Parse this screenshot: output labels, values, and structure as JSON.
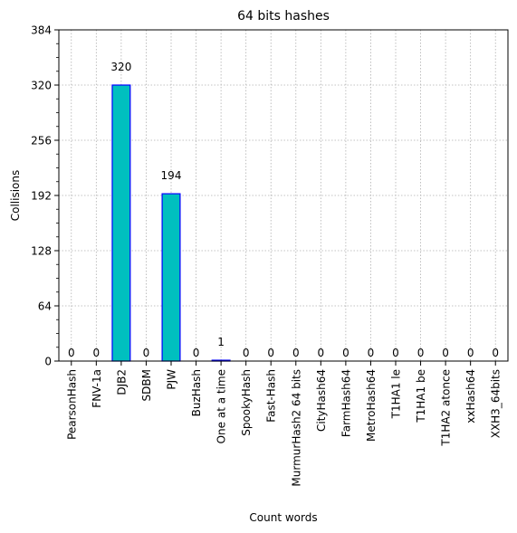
{
  "chart_data": {
    "type": "bar",
    "title": "64 bits hashes",
    "xlabel": "Count words",
    "ylabel": "Collisions",
    "ylim": [
      0,
      384
    ],
    "yticks": [
      0,
      64,
      128,
      192,
      256,
      320,
      384
    ],
    "categories": [
      "PearsonHash",
      "FNV-1a",
      "DJB2",
      "SDBM",
      "PJW",
      "BuzHash",
      "One at a time",
      "SpookyHash",
      "Fast-Hash",
      "MurmurHash2 64 bits",
      "CityHash64",
      "FarmHash64",
      "MetroHash64",
      "T1HA1 le",
      "T1HA1 be",
      "T1HA2 atonce",
      "xxHash64",
      "XXH3_64bits"
    ],
    "values": [
      0,
      0,
      320,
      0,
      194,
      0,
      1,
      0,
      0,
      0,
      0,
      0,
      0,
      0,
      0,
      0,
      0,
      0
    ],
    "grid": true,
    "bar_color": "#00bfbf",
    "bar_edge_color": "#0000ff",
    "grid_color": "#b0b0b0"
  }
}
